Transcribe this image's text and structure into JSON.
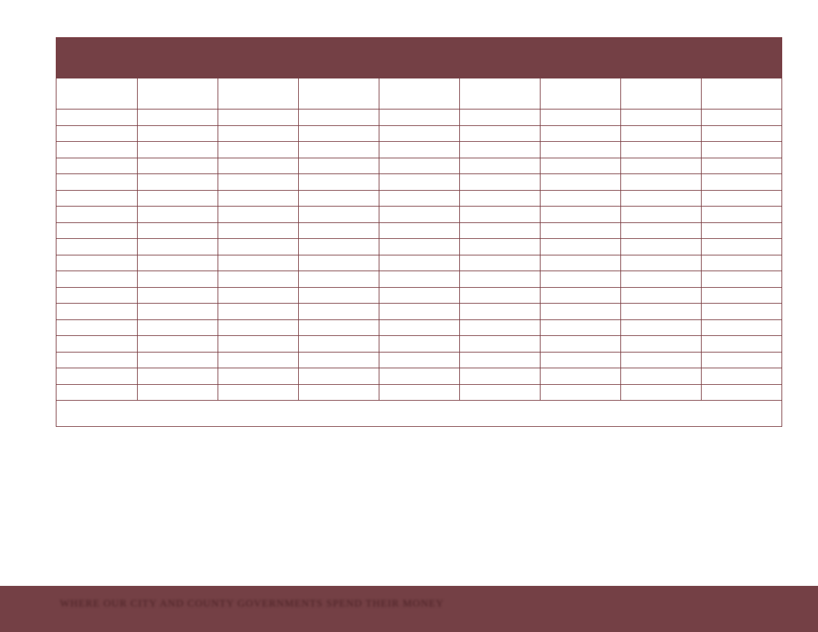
{
  "table": {
    "title": "",
    "columns": [
      "",
      "",
      "",
      "",
      "",
      "",
      "",
      "",
      ""
    ],
    "rows": [
      [
        "",
        "",
        "",
        "",
        "",
        "",
        "",
        "",
        ""
      ],
      [
        "",
        "",
        "",
        "",
        "",
        "",
        "",
        "",
        ""
      ],
      [
        "",
        "",
        "",
        "",
        "",
        "",
        "",
        "",
        ""
      ],
      [
        "",
        "",
        "",
        "",
        "",
        "",
        "",
        "",
        ""
      ],
      [
        "",
        "",
        "",
        "",
        "",
        "",
        "",
        "",
        ""
      ],
      [
        "",
        "",
        "",
        "",
        "",
        "",
        "",
        "",
        ""
      ],
      [
        "",
        "",
        "",
        "",
        "",
        "",
        "",
        "",
        ""
      ],
      [
        "",
        "",
        "",
        "",
        "",
        "",
        "",
        "",
        ""
      ],
      [
        "",
        "",
        "",
        "",
        "",
        "",
        "",
        "",
        ""
      ],
      [
        "",
        "",
        "",
        "",
        "",
        "",
        "",
        "",
        ""
      ],
      [
        "",
        "",
        "",
        "",
        "",
        "",
        "",
        "",
        ""
      ],
      [
        "",
        "",
        "",
        "",
        "",
        "",
        "",
        "",
        ""
      ],
      [
        "",
        "",
        "",
        "",
        "",
        "",
        "",
        "",
        ""
      ],
      [
        "",
        "",
        "",
        "",
        "",
        "",
        "",
        "",
        ""
      ],
      [
        "",
        "",
        "",
        "",
        "",
        "",
        "",
        "",
        ""
      ],
      [
        "",
        "",
        "",
        "",
        "",
        "",
        "",
        "",
        ""
      ],
      [
        "",
        "",
        "",
        "",
        "",
        "",
        "",
        "",
        ""
      ],
      [
        "",
        "",
        "",
        "",
        "",
        "",
        "",
        "",
        ""
      ]
    ],
    "note": ""
  },
  "footer": {
    "text": "WHERE OUR CITY AND COUNTY GOVERNMENTS SPEND THEIR MONEY"
  },
  "colors": {
    "accent": "#744045",
    "border": "#7a3b40",
    "footer_text": "#4a2024",
    "background": "#ffffff"
  }
}
